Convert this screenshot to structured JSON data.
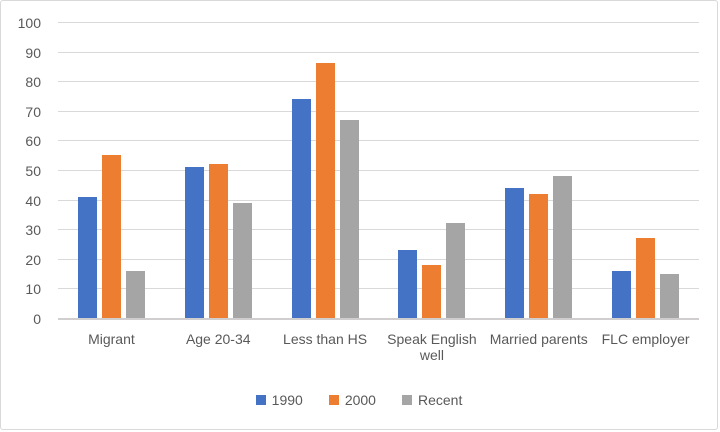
{
  "chart_data": {
    "type": "bar",
    "title": "",
    "xlabel": "",
    "ylabel": "",
    "categories": [
      "Migrant",
      "Age 20-34",
      "Less than HS",
      "Speak English well",
      "Married parents",
      "FLC employer"
    ],
    "series": [
      {
        "name": "1990",
        "color": "#4472C4",
        "values": [
          41,
          51,
          74,
          23,
          44,
          16
        ]
      },
      {
        "name": "2000",
        "color": "#ED7D31",
        "values": [
          55,
          52,
          86,
          18,
          42,
          27
        ]
      },
      {
        "name": "Recent",
        "color": "#A5A5A5",
        "values": [
          16,
          39,
          67,
          32,
          48,
          15
        ]
      }
    ],
    "ylim": [
      0,
      100
    ],
    "ytick_step": 10,
    "ytick_labels": [
      "0",
      "10",
      "20",
      "30",
      "40",
      "50",
      "60",
      "70",
      "80",
      "90",
      "100"
    ],
    "grid": true,
    "legend_position": "bottom"
  },
  "colors": {
    "background": "#FFFFFF",
    "border": "#D9D9D9",
    "gridline": "#D9D9D9",
    "axis_line": "#D0CECE",
    "text": "#595959"
  }
}
